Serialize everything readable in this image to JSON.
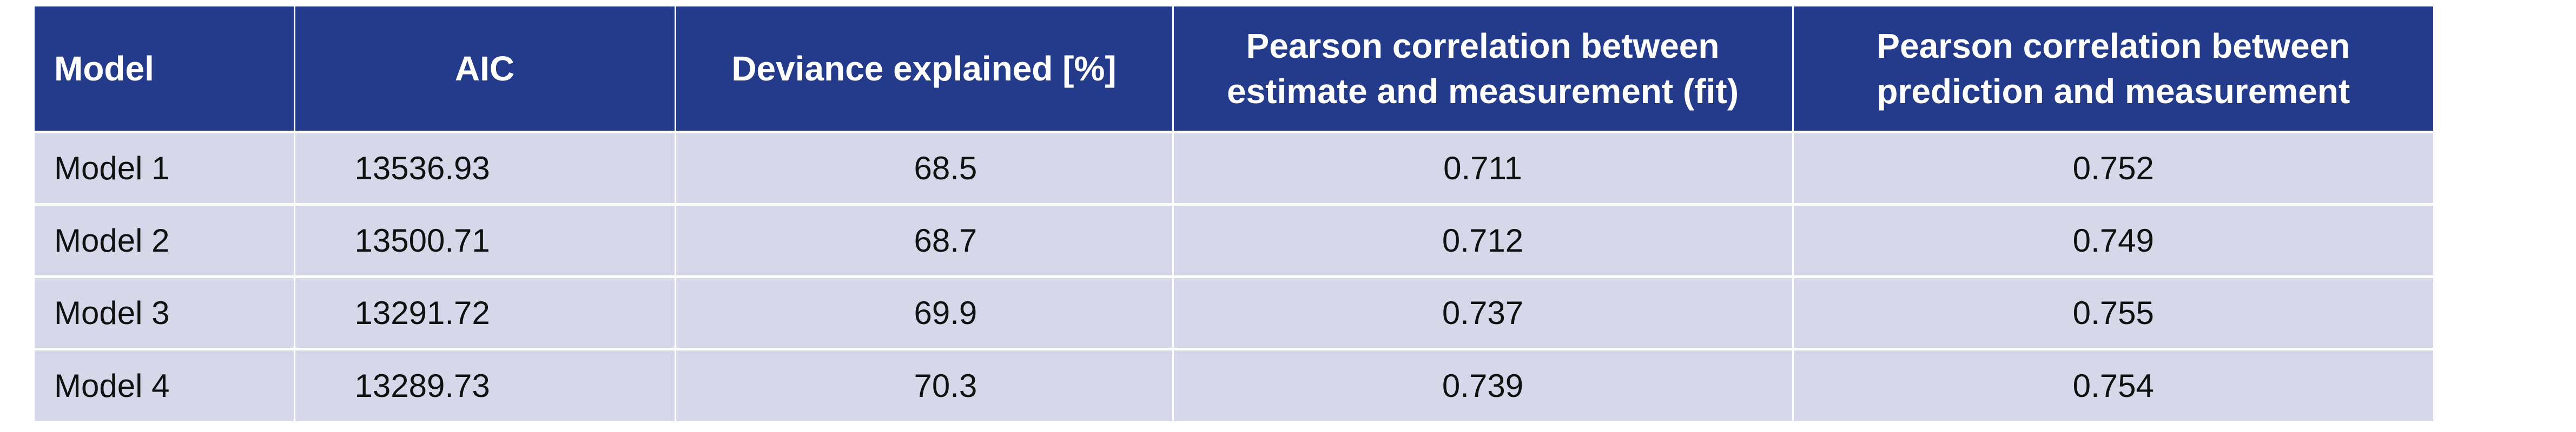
{
  "table": {
    "headers": {
      "model": "Model",
      "aic": "AIC",
      "deviance": "Deviance explained [%]",
      "fit": "Pearson correlation between estimate and measurement (fit)",
      "prediction": "Pearson correlation between prediction and measurement"
    },
    "rows": [
      {
        "model": "Model 1",
        "aic": "13536.93",
        "deviance": "68.5",
        "fit": "0.711",
        "prediction": "0.752"
      },
      {
        "model": "Model 2",
        "aic": "13500.71",
        "deviance": "68.7",
        "fit": "0.712",
        "prediction": "0.749"
      },
      {
        "model": "Model 3",
        "aic": "13291.72",
        "deviance": "69.9",
        "fit": "0.737",
        "prediction": "0.755"
      },
      {
        "model": "Model 4",
        "aic": "13289.73",
        "deviance": "70.3",
        "fit": "0.739",
        "prediction": "0.754"
      }
    ]
  },
  "colors": {
    "header_bg": "#243a8a",
    "header_text": "#ffffff",
    "row_bg": "#d7d7ea",
    "row_text": "#111111"
  }
}
